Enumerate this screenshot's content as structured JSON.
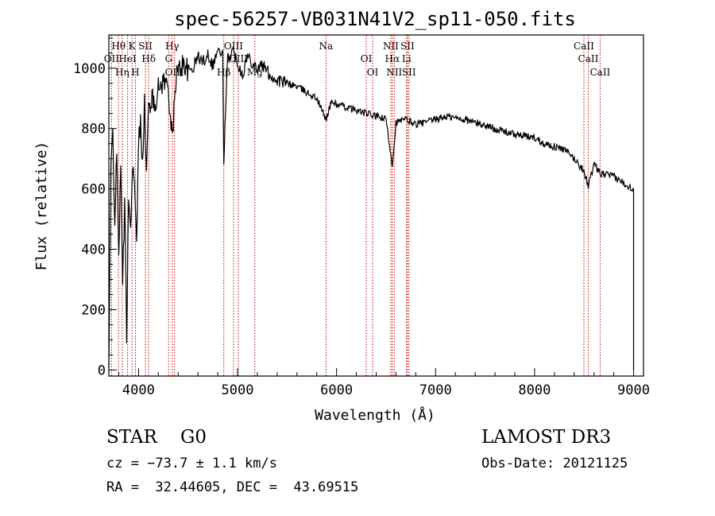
{
  "chart_data": {
    "type": "line",
    "title": "spec-56257-VB031N41V2_sp11-050.fits",
    "xlabel": "Wavelength (Å)",
    "ylabel": "Flux (relative)",
    "xlim": [
      3700,
      9100
    ],
    "ylim": [
      -20,
      1110
    ],
    "xticks": [
      4000,
      5000,
      6000,
      7000,
      8000,
      9000
    ],
    "yticks": [
      0,
      200,
      400,
      600,
      800,
      1000
    ],
    "series": [
      {
        "name": "flux",
        "x": [
          3700,
          3720,
          3740,
          3760,
          3780,
          3800,
          3820,
          3840,
          3860,
          3880,
          3900,
          3920,
          3940,
          3960,
          3980,
          4000,
          4020,
          4040,
          4060,
          4080,
          4100,
          4130,
          4160,
          4200,
          4250,
          4300,
          4340,
          4380,
          4420,
          4460,
          4500,
          4550,
          4600,
          4650,
          4700,
          4750,
          4800,
          4850,
          4861,
          4900,
          4950,
          5000,
          5050,
          5100,
          5150,
          5200,
          5250,
          5300,
          5350,
          5400,
          5500,
          5600,
          5700,
          5800,
          5893,
          5950,
          6000,
          6100,
          6200,
          6300,
          6400,
          6500,
          6563,
          6600,
          6700,
          6800,
          6900,
          7000,
          7100,
          7200,
          7300,
          7400,
          7500,
          7600,
          7700,
          7800,
          7900,
          8000,
          8100,
          8200,
          8300,
          8400,
          8498,
          8542,
          8600,
          8662,
          8700,
          8800,
          8900,
          9000
        ],
        "y": [
          0,
          650,
          800,
          500,
          700,
          400,
          650,
          300,
          550,
          120,
          600,
          450,
          700,
          600,
          400,
          750,
          820,
          700,
          880,
          650,
          860,
          900,
          880,
          930,
          960,
          940,
          760,
          980,
          1000,
          1020,
          990,
          1000,
          1040,
          1020,
          1050,
          1010,
          1060,
          1040,
          700,
          1030,
          1060,
          1020,
          980,
          1040,
          1020,
          1000,
          1010,
          990,
          970,
          960,
          950,
          940,
          920,
          900,
          830,
          890,
          880,
          870,
          860,
          850,
          840,
          830,
          680,
          820,
          830,
          815,
          820,
          830,
          840,
          835,
          830,
          820,
          810,
          800,
          790,
          780,
          775,
          770,
          750,
          740,
          730,
          700,
          660,
          610,
          680,
          650,
          650,
          640,
          620,
          600
        ]
      }
    ],
    "lines": [
      {
        "label": "Hθ",
        "x": 3798
      },
      {
        "label": "OII",
        "x": 3727
      },
      {
        "label": "Hη",
        "x": 3835
      },
      {
        "label": "K",
        "x": 3934
      },
      {
        "label": "HeI",
        "x": 3889
      },
      {
        "label": "H",
        "x": 3968
      },
      {
        "label": "SII",
        "x": 4069
      },
      {
        "label": "Hδ",
        "x": 4102
      },
      {
        "label": "OIII",
        "x": 4363
      },
      {
        "label": "Hγ",
        "x": 4340
      },
      {
        "label": "G",
        "x": 4304
      },
      {
        "label": "Hβ",
        "x": 4861
      },
      {
        "label": "OIII",
        "x": 4959
      },
      {
        "label": "OIII",
        "x": 5007
      },
      {
        "label": "Mg",
        "x": 5175
      },
      {
        "label": "Na",
        "x": 5893
      },
      {
        "label": "OI",
        "x": 6300
      },
      {
        "label": "OI",
        "x": 6364
      },
      {
        "label": "NII",
        "x": 6548
      },
      {
        "label": "Hα",
        "x": 6563
      },
      {
        "label": "NII",
        "x": 6583
      },
      {
        "label": "SII",
        "x": 6716
      },
      {
        "label": "Li",
        "x": 6707
      },
      {
        "label": "SII",
        "x": 6731
      },
      {
        "label": "CaII",
        "x": 8498
      },
      {
        "label": "CaII",
        "x": 8542
      },
      {
        "label": "CaII",
        "x": 8662
      }
    ]
  },
  "info": {
    "class": "STAR    G0",
    "cz": "cz = −73.7 ± 1.1 km/s",
    "coords": "RA =  32.44605, DEC =  43.69515",
    "survey": "LAMOST DR3",
    "obs_date": "Obs-Date: 20121125"
  },
  "colors": {
    "line": "#000000",
    "marker": "#cc0000"
  }
}
